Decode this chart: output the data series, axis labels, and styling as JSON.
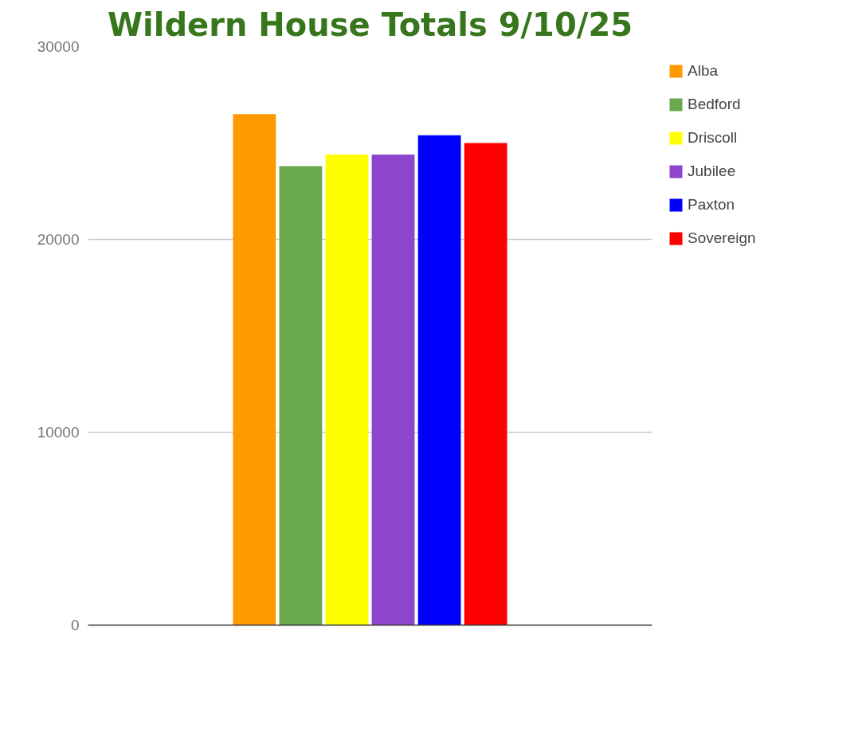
{
  "chart_data": {
    "type": "bar",
    "title": "Wildern House Totals 9/10/25",
    "categories": [
      null
    ],
    "series": [
      {
        "name": "Alba",
        "color": "#ff9900",
        "values": [
          26500
        ]
      },
      {
        "name": "Bedford",
        "color": "#6aa84f",
        "values": [
          23800
        ]
      },
      {
        "name": "Driscoll",
        "color": "#ffff00",
        "values": [
          24400
        ]
      },
      {
        "name": "Jubilee",
        "color": "#8e44cc",
        "values": [
          24400
        ]
      },
      {
        "name": "Paxton",
        "color": "#0000ff",
        "values": [
          25400
        ]
      },
      {
        "name": "Sovereign",
        "color": "#ff0000",
        "values": [
          25000
        ]
      }
    ],
    "ylim": [
      0,
      30000
    ],
    "yticks": [
      0,
      10000,
      20000,
      30000
    ],
    "grid": "y",
    "legend": "right",
    "tick_labels": "y"
  }
}
